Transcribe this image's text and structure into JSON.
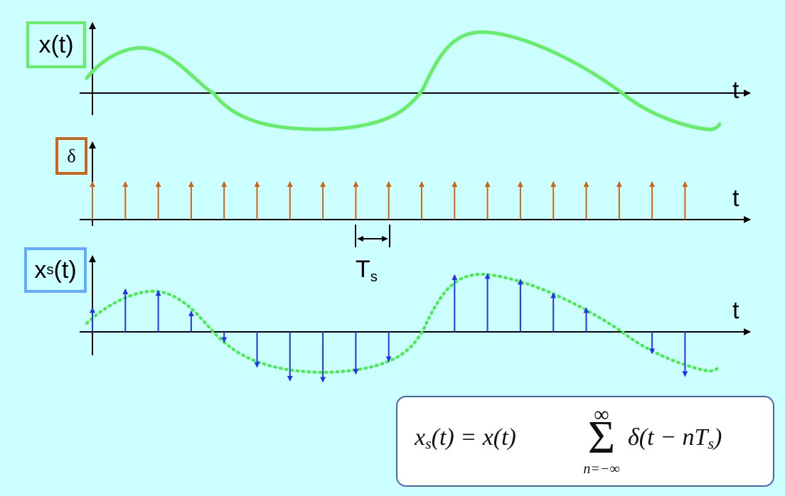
{
  "labels": {
    "signal": "x(t)",
    "delta": "δ",
    "sampled_base": "x",
    "sampled_sub": "s",
    "sampled_tail": "(t)",
    "axis_t": "t",
    "period_base": "T",
    "period_sub": "s"
  },
  "formula": {
    "lhs_base": "x",
    "lhs_sub": "s",
    "lhs_tail": "(t) = x(t)",
    "sum_top": "∞",
    "sum_symbol": "Σ",
    "sum_bottom": "n=−∞",
    "rhs_main": "δ(t − nT",
    "rhs_sub": "s",
    "rhs_close": ")"
  },
  "colors": {
    "background": "#ccffff",
    "signal": "#66ee66",
    "impulse": "#cc6611",
    "sample": "#2233ee",
    "axis": "#000000"
  },
  "diagram": {
    "sample_count": 19,
    "sampled_values": [
      0.42,
      0.75,
      0.72,
      0.36,
      -0.18,
      -0.62,
      -0.86,
      -0.88,
      -0.74,
      -0.52,
      0.0,
      1.0,
      1.02,
      0.92,
      0.68,
      0.42,
      0.0,
      -0.38,
      -0.78
    ]
  }
}
